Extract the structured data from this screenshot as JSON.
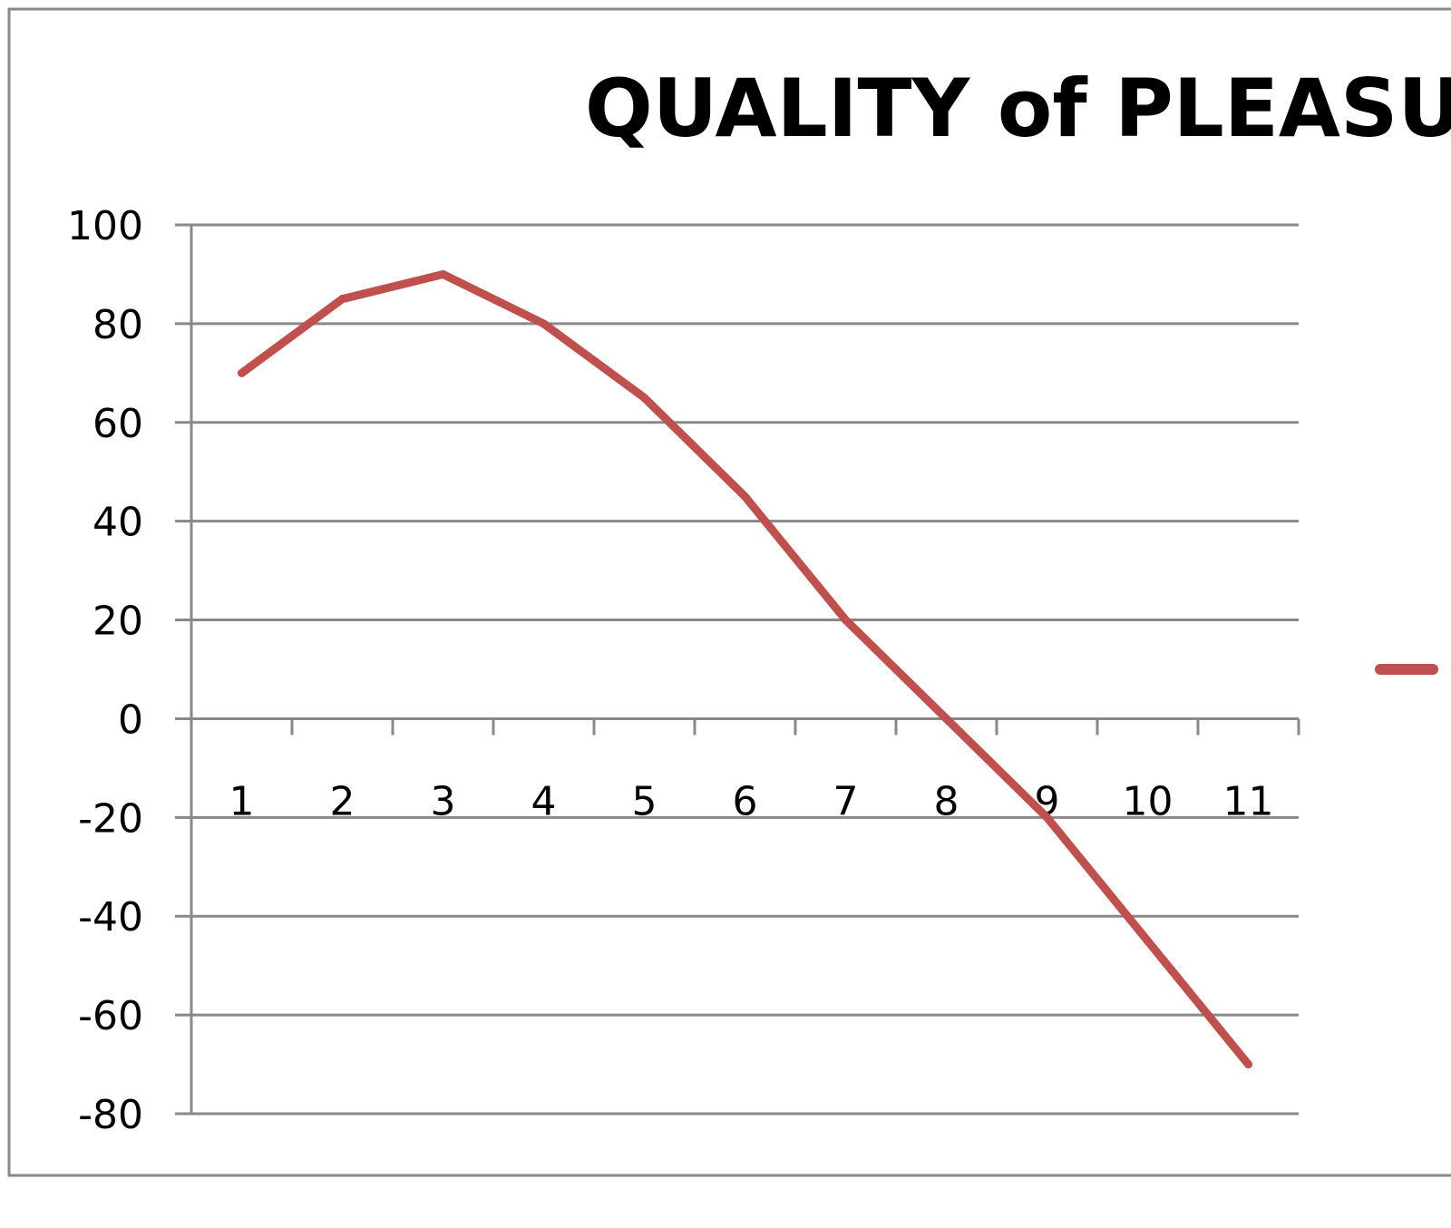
{
  "chart_data": {
    "type": "line",
    "title": "QUALITY of PLEASURE",
    "xlabel": "",
    "ylabel": "",
    "categories": [
      "1",
      "2",
      "3",
      "4",
      "5",
      "6",
      "7",
      "8",
      "9",
      "10",
      "11"
    ],
    "series": [
      {
        "color": "#c0504d",
        "values": [
          70,
          85,
          90,
          80,
          65,
          45,
          20,
          0,
          -20,
          -45,
          -70
        ]
      }
    ],
    "ylim": [
      -80,
      100
    ],
    "yticks": [
      "100",
      "80",
      "60",
      "40",
      "20",
      "0",
      "-20",
      "-40",
      "-60",
      "-80"
    ],
    "grid": true,
    "legend": "right"
  }
}
